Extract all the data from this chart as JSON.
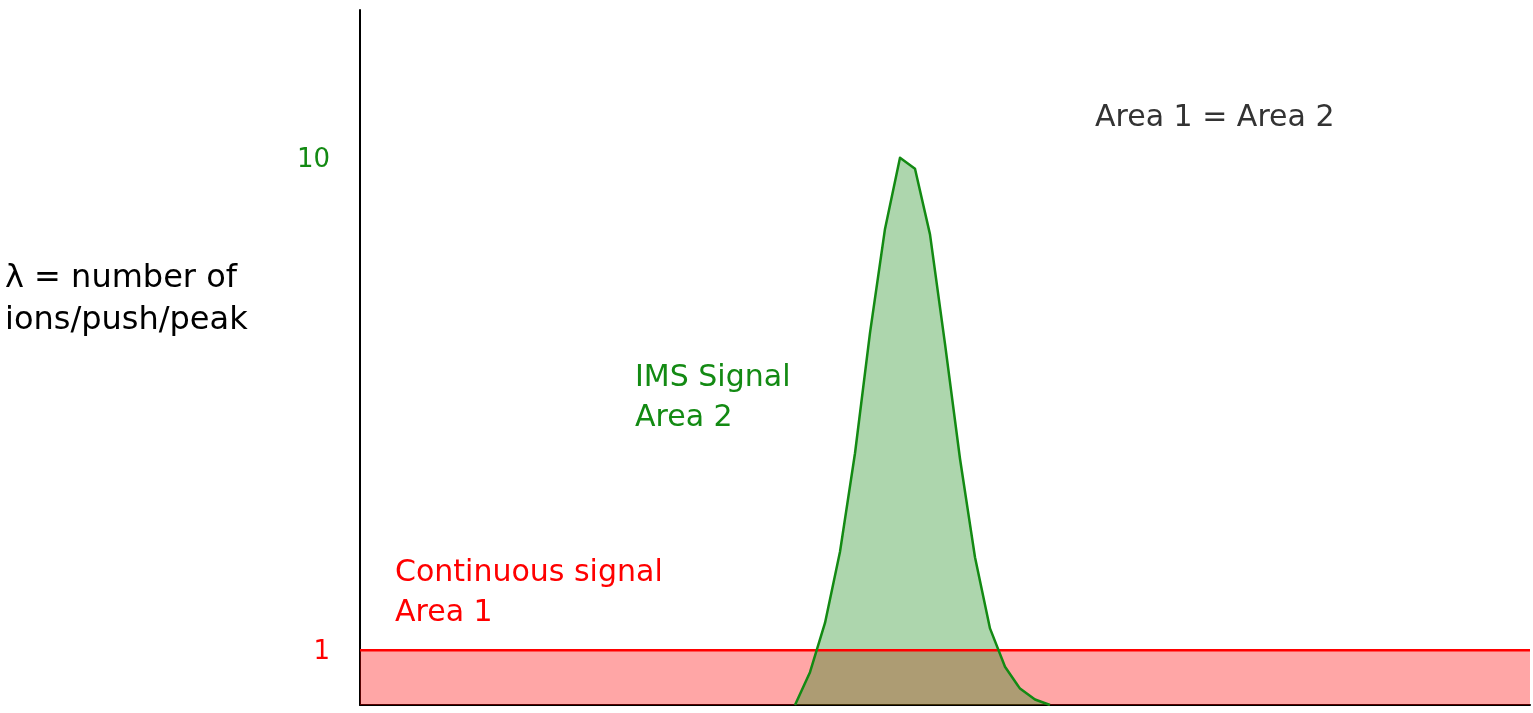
{
  "chart_data": {
    "type": "area",
    "ylabel": "λ = number of ions/push/peak",
    "annotations": [
      "Continuous signal Area 1",
      "IMS Signal Area 2",
      "Area 1 = Area 2"
    ],
    "categories": [
      null,
      null,
      null,
      null,
      null,
      null,
      null,
      null,
      null,
      null,
      null,
      null,
      null,
      null,
      null,
      null,
      null,
      null,
      null,
      null,
      null,
      null,
      null,
      null,
      null,
      null,
      null,
      null,
      null,
      null,
      null,
      null,
      null,
      null,
      null,
      null,
      null,
      null,
      null,
      null,
      null,
      null,
      null,
      null,
      null,
      null,
      null,
      null,
      null,
      null,
      null,
      null,
      null,
      null,
      null,
      null,
      null,
      null,
      null,
      null,
      null,
      null,
      null,
      null,
      null,
      null,
      null,
      null,
      null,
      null,
      null,
      null,
      null,
      null,
      null,
      null,
      null,
      null,
      null
    ],
    "ylim": [
      0,
      12.7
    ],
    "yticks": [
      1,
      10
    ],
    "series": [
      {
        "color": "#ff0000",
        "values": [
          1,
          1,
          1,
          1,
          1,
          1,
          1,
          1,
          1,
          1,
          1,
          1,
          1,
          1,
          1,
          1,
          1,
          1,
          1,
          1,
          1,
          1,
          1,
          1,
          1,
          1,
          1,
          1,
          1,
          1,
          1,
          1,
          1,
          1,
          1,
          1,
          1,
          1,
          1,
          1,
          1,
          1,
          1,
          1,
          1,
          1,
          1,
          1,
          1,
          1,
          1,
          1,
          1,
          1,
          1,
          1,
          1,
          1,
          1,
          1,
          1,
          1,
          1,
          1,
          1,
          1,
          1,
          1,
          1,
          1,
          1,
          1,
          1,
          1,
          1,
          1,
          1,
          1,
          1
        ]
      },
      {
        "color": "#138a13",
        "values": [
          null,
          null,
          null,
          null,
          null,
          null,
          null,
          null,
          null,
          null,
          null,
          null,
          null,
          null,
          null,
          null,
          null,
          null,
          null,
          null,
          null,
          null,
          null,
          null,
          null,
          null,
          null,
          null,
          null,
          0,
          0.6,
          1.5,
          2.8,
          4.6,
          6.8,
          8.7,
          10,
          9.8,
          8.6,
          6.6,
          4.5,
          2.7,
          1.4,
          0.7,
          0.3,
          0.1,
          0,
          null,
          null,
          null,
          null,
          null,
          null,
          null,
          null,
          null,
          null,
          null,
          null,
          null,
          null,
          null,
          null,
          null,
          null,
          null,
          null,
          null,
          null,
          null,
          null,
          null,
          null,
          null,
          null,
          null,
          null,
          null,
          null
        ]
      }
    ]
  }
}
